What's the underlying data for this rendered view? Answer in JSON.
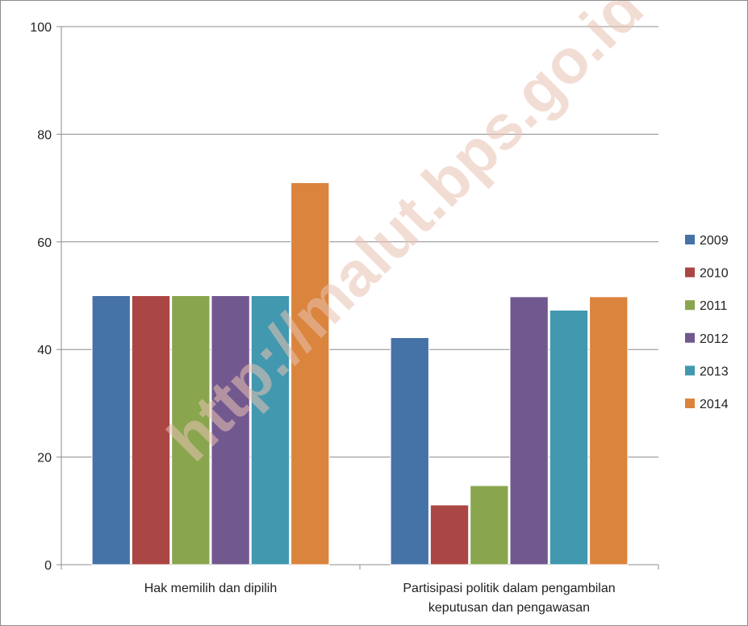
{
  "watermark": "http://malut.bps.go.id",
  "chart_data": {
    "type": "bar",
    "title": "",
    "xlabel": "",
    "ylabel": "",
    "ylim": [
      0,
      100
    ],
    "yticks": [
      0,
      20,
      40,
      60,
      80,
      100
    ],
    "grid": true,
    "legend_position": "right",
    "categories": [
      [
        "Hak memilih dan dipilih"
      ],
      [
        "Partisipasi politik dalam pengambilan",
        "keputusan dan pengawasan"
      ]
    ],
    "series": [
      {
        "name": "2009",
        "color": "#4572a7",
        "values": [
          50.0,
          42.2
        ]
      },
      {
        "name": "2010",
        "color": "#aa4643",
        "values": [
          50.0,
          11.1
        ]
      },
      {
        "name": "2011",
        "color": "#89a54e",
        "values": [
          50.0,
          14.7
        ]
      },
      {
        "name": "2012",
        "color": "#71588f",
        "values": [
          50.0,
          49.8
        ]
      },
      {
        "name": "2013",
        "color": "#4198af",
        "values": [
          50.0,
          47.3
        ]
      },
      {
        "name": "2014",
        "color": "#db843d",
        "values": [
          71.0,
          49.8
        ]
      }
    ]
  }
}
